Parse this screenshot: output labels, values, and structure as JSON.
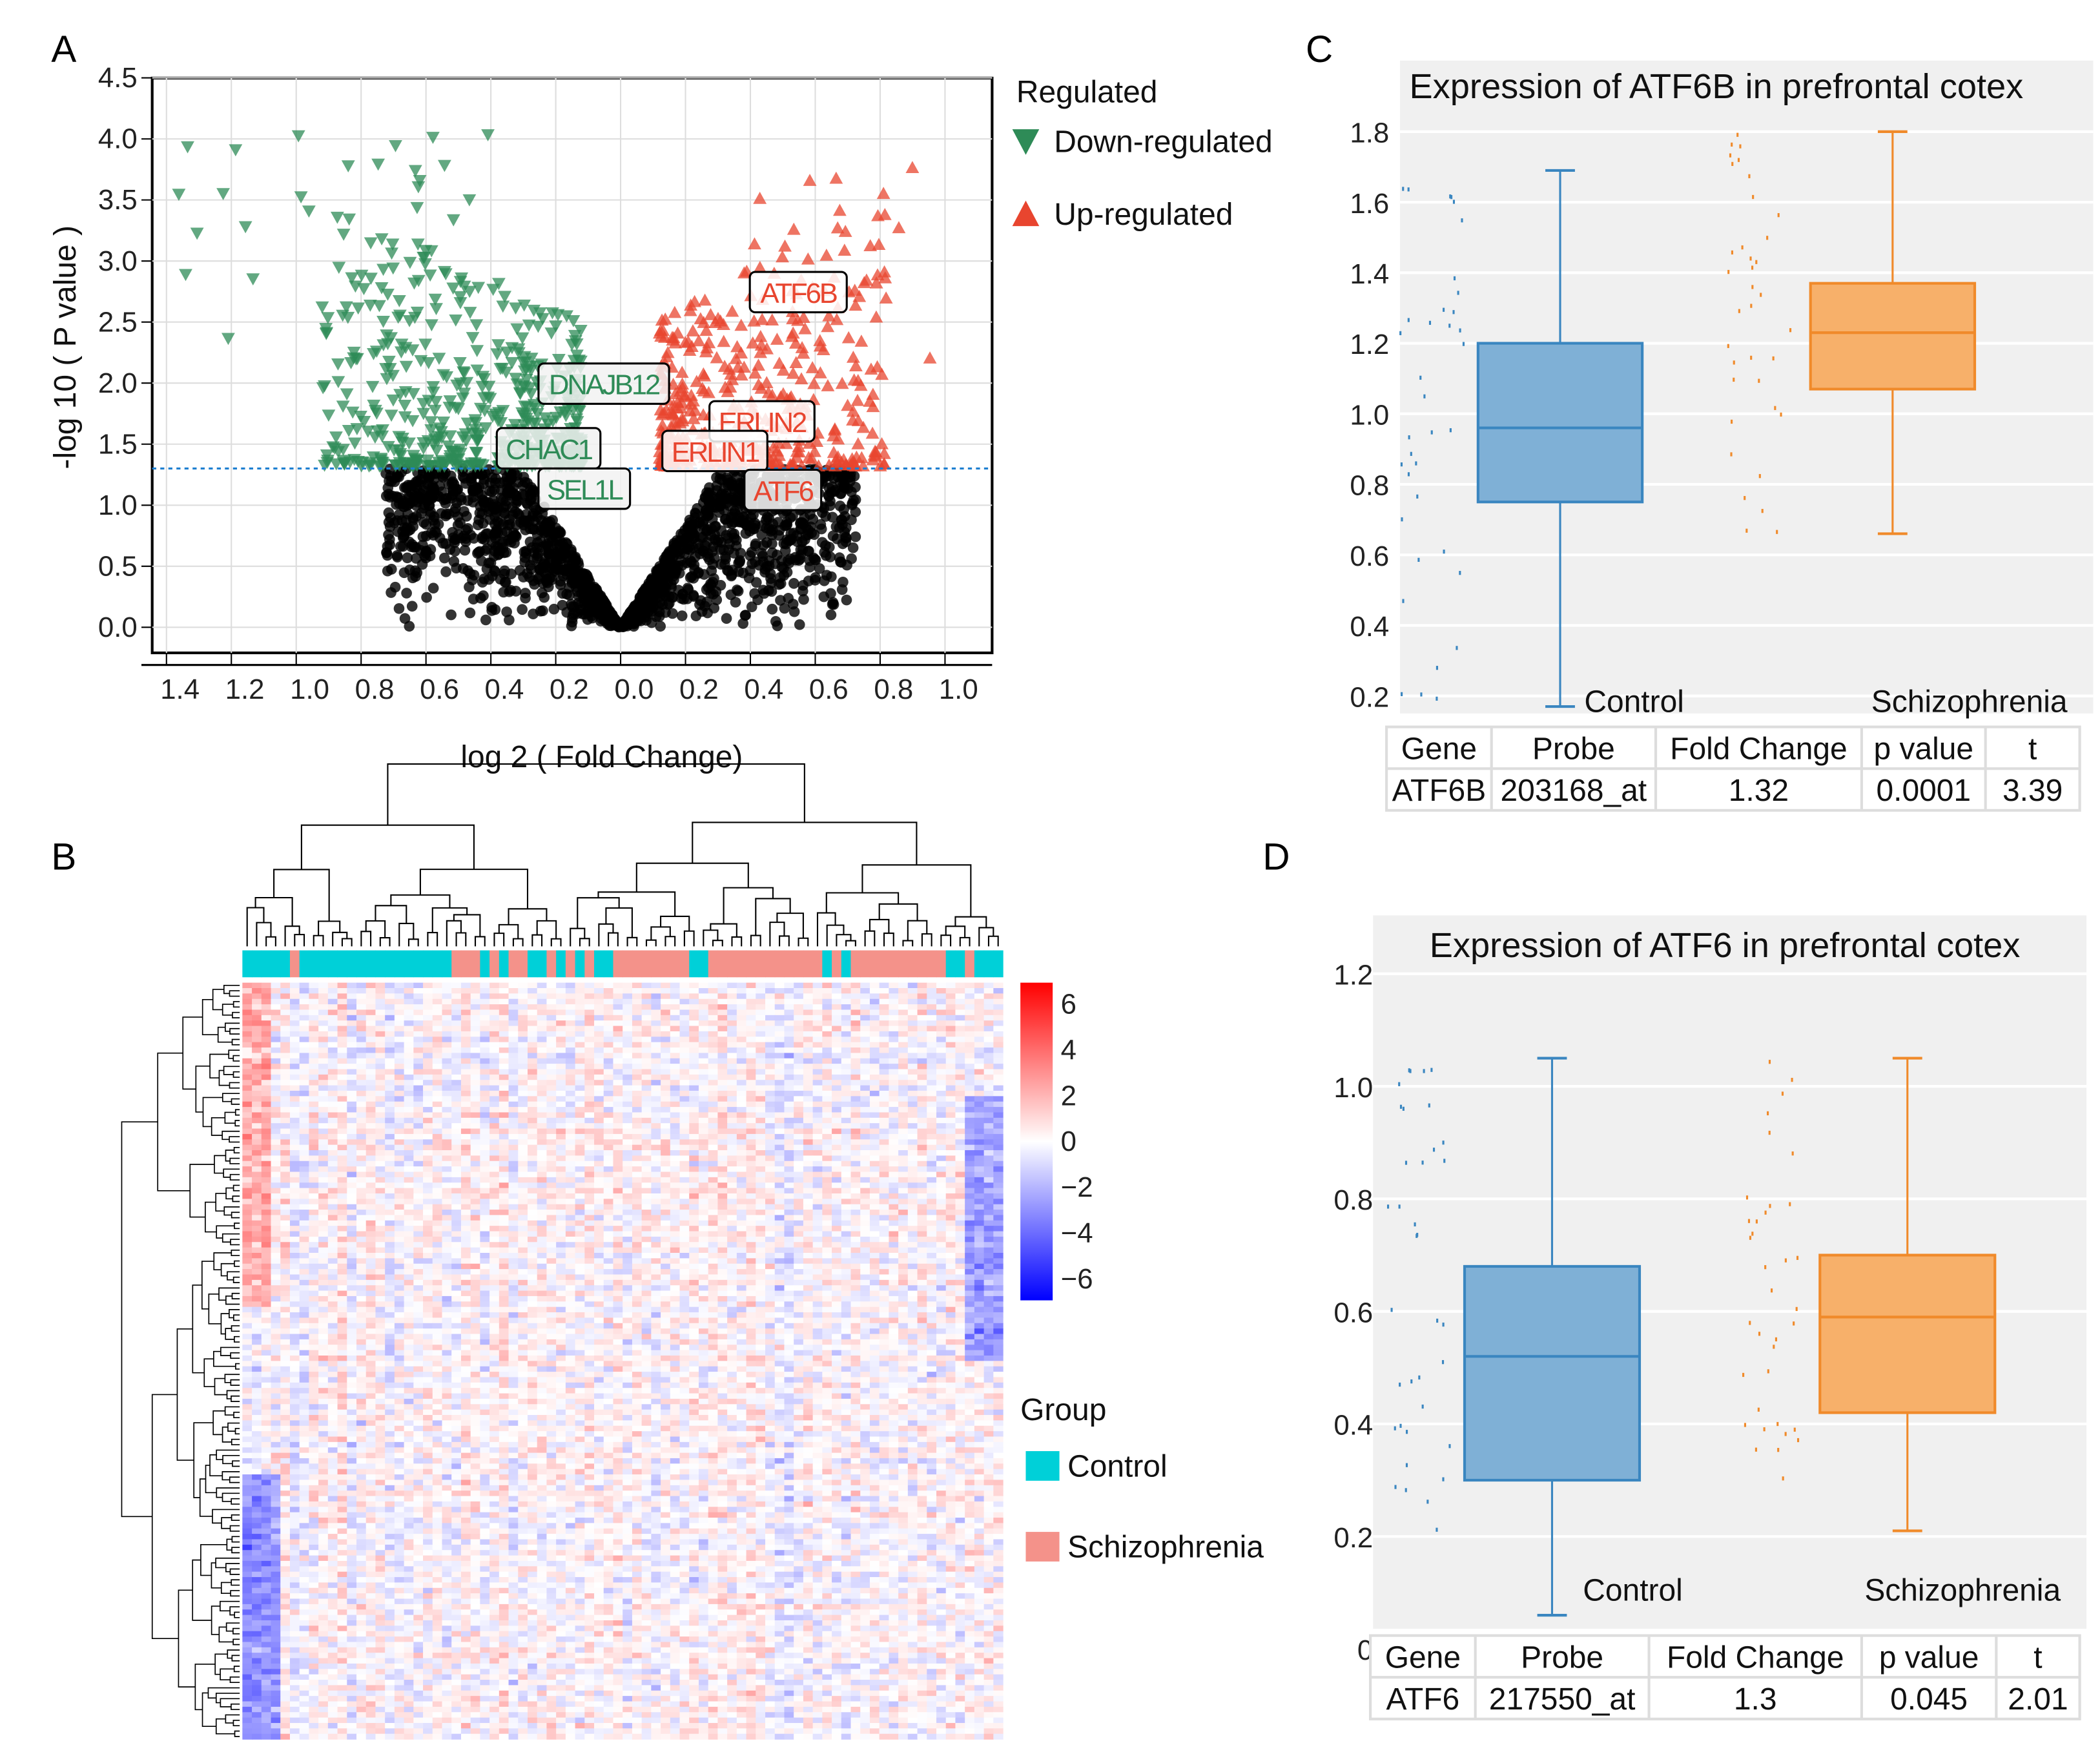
{
  "panels": {
    "a": "A",
    "b": "B",
    "c": "C",
    "d": "D"
  },
  "colors": {
    "down": "#2e8b57",
    "up": "#e8452f",
    "ns": "#000000",
    "control_box": "#7fb0d6",
    "schizo_box": "#f7b06a",
    "control_group": "#00d0d8",
    "schizo_group": "#f4928a",
    "threshold": "#1e7fd0"
  },
  "chart_data": [
    {
      "type": "scatter",
      "title": "",
      "xlabel": "log 2 ( Fold Change)",
      "ylabel": "-log 10 ( P value )",
      "xlim": [
        -1.5,
        1.15
      ],
      "ylim": [
        -0.1,
        4.5
      ],
      "x_ticks": [
        -1.4,
        -1.2,
        -1.0,
        -0.8,
        -0.6,
        -0.4,
        -0.2,
        0.0,
        0.2,
        0.4,
        0.6,
        0.8,
        1.0
      ],
      "x_tick_labels": [
        "1.4",
        "1.2",
        "1.0",
        "0.8",
        "0.6",
        "0.4",
        "0.2",
        "0.0",
        "0.2",
        "0.4",
        "0.6",
        "0.8",
        "1.0"
      ],
      "y_ticks": [
        0.0,
        0.5,
        1.0,
        1.5,
        2.0,
        2.5,
        3.0,
        3.5,
        4.0,
        4.5
      ],
      "y_tick_labels": [
        "0.0",
        "0.5",
        "1.0",
        "1.5",
        "2.0",
        "2.5",
        "3.0",
        "3.5",
        "4.0",
        "4.5"
      ],
      "threshold_y": 1.3,
      "grid": true,
      "legend": {
        "title": "Regulated",
        "placement": "right",
        "entries": [
          "Down-regulated",
          "Up-regulated"
        ]
      },
      "annotations": [
        {
          "label": "ATF6B",
          "group": "up",
          "x": 0.55,
          "y": 2.75
        },
        {
          "label": "DNAJB12",
          "group": "down",
          "x": -0.05,
          "y": 2.0
        },
        {
          "label": "ERLIN2",
          "group": "up",
          "x": 0.55,
          "y": 1.7
        },
        {
          "label": "ERLIN1",
          "group": "up",
          "x": 0.4,
          "y": 1.45
        },
        {
          "label": "CHAC1",
          "group": "down",
          "x": -0.2,
          "y": 1.45
        },
        {
          "label": "SEL1L",
          "group": "down",
          "x": -0.1,
          "y": 1.15
        },
        {
          "label": "ATF6",
          "group": "up",
          "x": 0.5,
          "y": 1.1
        }
      ]
    },
    {
      "type": "heatmap",
      "legend_ticks": [
        "6",
        "4",
        "2",
        "0",
        "−2",
        "−4",
        "−6"
      ],
      "legend_range": [
        -6,
        6
      ],
      "group_legend": {
        "title": "Group",
        "entries": [
          "Control",
          "Schizophrenia"
        ]
      },
      "sample_groups": "CCCCCSCCCCCCCCCCCCCCCCSSSCSCSSCCSCSCSCCSSSSSSSSCCSSSSSSSSSSSSCSCSSSSSSSSSSCCSCCC"
    },
    {
      "type": "box",
      "title": "Expression of ATF6B in prefrontal cotex",
      "ylim": [
        0.15,
        1.85
      ],
      "y_ticks": [
        "0.2",
        "0.4",
        "0.6",
        "0.8",
        "1.0",
        "1.2",
        "1.4",
        "1.6",
        "1.8"
      ],
      "categories": [
        "Control",
        "Schizophrenia"
      ],
      "boxes": [
        {
          "name": "Control",
          "min": 0.17,
          "q1": 0.75,
          "median": 0.96,
          "q3": 1.2,
          "max": 1.69
        },
        {
          "name": "Schizophrenia",
          "min": 0.66,
          "q1": 1.07,
          "median": 1.23,
          "q3": 1.37,
          "max": 1.8
        }
      ],
      "table": {
        "headers": [
          "Gene",
          "Probe",
          "Fold Change",
          "p value",
          "t"
        ],
        "row": [
          "ATF6B",
          "203168_at",
          "1.32",
          "0.0001",
          "3.39"
        ]
      }
    },
    {
      "type": "box",
      "title": "Expression of ATF6 in prefrontal cotex",
      "ylim": [
        0.0,
        1.25
      ],
      "y_ticks": [
        "0",
        "0.2",
        "0.4",
        "0.6",
        "0.8",
        "1.0",
        "1.2"
      ],
      "categories": [
        "Control",
        "Schizophrenia"
      ],
      "boxes": [
        {
          "name": "Control",
          "min": 0.06,
          "q1": 0.3,
          "median": 0.52,
          "q3": 0.68,
          "max": 1.05
        },
        {
          "name": "Schizophrenia",
          "min": 0.21,
          "q1": 0.42,
          "median": 0.59,
          "q3": 0.7,
          "max": 1.05
        }
      ],
      "table": {
        "headers": [
          "Gene",
          "Probe",
          "Fold Change",
          "p value",
          "t"
        ],
        "row": [
          "ATF6",
          "217550_at",
          "1.3",
          "0.045",
          "2.01"
        ]
      }
    }
  ]
}
